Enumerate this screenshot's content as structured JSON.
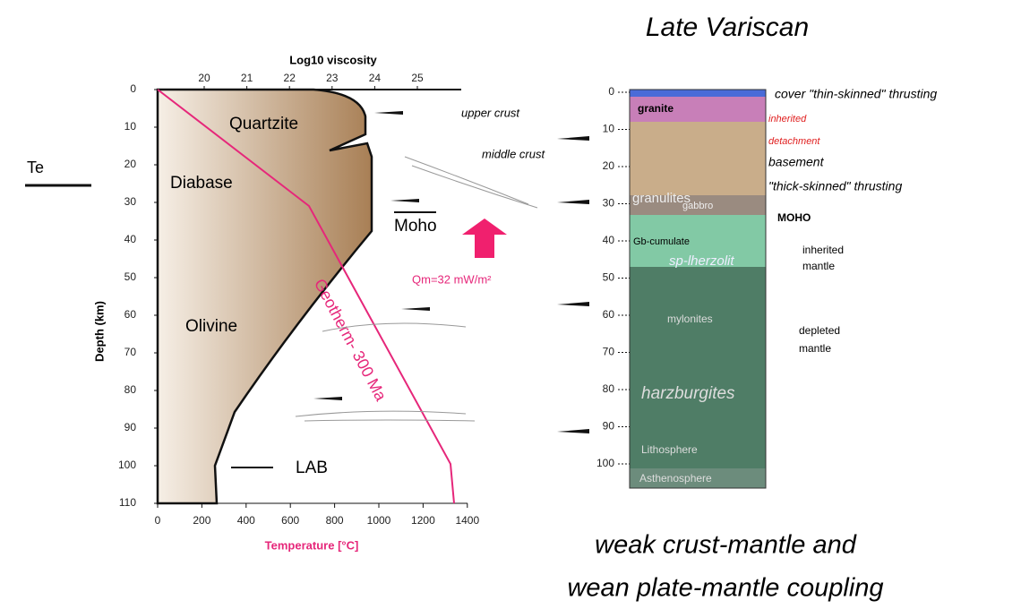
{
  "title": "Late Variscan",
  "caption": [
    "weak crust-mantle and",
    "wean plate-mantle coupling"
  ],
  "left_panel": {
    "top_axis_label": "Log10 viscosity",
    "top_ticks": [
      20,
      21,
      22,
      23,
      24,
      25
    ],
    "bottom_axis_label": "Temperature [°C]",
    "bottom_ticks": [
      0,
      200,
      400,
      600,
      800,
      1000,
      1200,
      1400
    ],
    "depth_axis_label": "Depth (km)",
    "depth_ticks": [
      0,
      10,
      20,
      30,
      40,
      50,
      60,
      70,
      80,
      90,
      100,
      110
    ],
    "te_label": "Te",
    "layers": [
      "Quartzite",
      "Diabase",
      "Olivine"
    ],
    "geotherm_label": "Geotherm- 300 Ma",
    "lab_label": "LAB",
    "moho_label": "Moho",
    "crust_labels": [
      "upper crust",
      "middle crust"
    ],
    "heat_flow_label": "Qm=32 mW/m²"
  },
  "right_panel": {
    "depth_ticks": [
      0,
      10,
      20,
      30,
      40,
      50,
      60,
      70,
      80,
      90,
      100
    ],
    "column_labels": [
      "granite",
      "granulites",
      "gabbro",
      "Gb-cumulate",
      "sp-lherzolit",
      "mylonites",
      "harzburgites",
      "Lithosphere",
      "Asthenosphere"
    ],
    "red_labels": [
      "inherited",
      "detachment"
    ],
    "annotations": [
      "cover \"thin-skinned\" thrusting",
      "basement",
      "\"thick-skinned\" thrusting",
      "MOHO",
      "inherited",
      "mantle",
      "depleted",
      "mantle"
    ]
  }
}
